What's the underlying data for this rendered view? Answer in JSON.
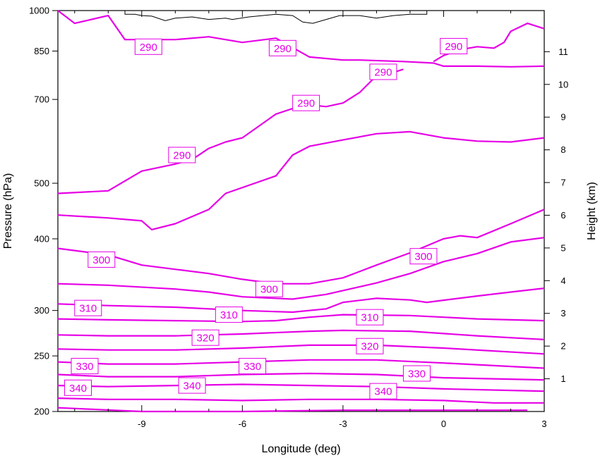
{
  "chart_data": {
    "type": "line",
    "subtype": "contour-cross-section",
    "title": "",
    "xlabel": "Longitude (deg)",
    "ylabel": "Pressure (hPa)",
    "y2label": "Height (km)",
    "xlim": [
      -11.5,
      3
    ],
    "ylim": [
      1000,
      200
    ],
    "y_scale": "log",
    "y2lim": [
      0,
      12
    ],
    "x_ticks": [
      -9,
      -6,
      -3,
      0,
      3
    ],
    "x_tick_labels": [
      "-9",
      "-6",
      "-3",
      "0",
      "3"
    ],
    "y_ticks": [
      200,
      250,
      300,
      400,
      500,
      700,
      850,
      1000
    ],
    "y_tick_labels": [
      "200",
      "250",
      "300",
      "400",
      "500",
      "700",
      "850",
      "1000"
    ],
    "y2_ticks": [
      1,
      2,
      3,
      4,
      5,
      6,
      7,
      8,
      9,
      10,
      11
    ],
    "y2_tick_labels": [
      "1",
      "2",
      "3",
      "4",
      "5",
      "6",
      "7",
      "8",
      "9",
      "10",
      "11"
    ],
    "grid": false,
    "legend": "none",
    "colors": {
      "contour": "#e600e6",
      "terrain": "#000000",
      "axis": "#000000"
    },
    "contour_interval_K": 5,
    "series": [
      {
        "level": 345,
        "points": [
          [
            -11.5,
            203
          ],
          [
            -9,
            200
          ],
          [
            -6,
            200
          ],
          [
            -3,
            201
          ],
          [
            0,
            201
          ],
          [
            2.5,
            201
          ]
        ]
      },
      {
        "level": 340,
        "points": [
          [
            -11.5,
            211
          ],
          [
            -10,
            210
          ],
          [
            -8,
            210
          ],
          [
            -6,
            209
          ],
          [
            -4,
            210
          ],
          [
            -2,
            210
          ],
          [
            0,
            209
          ],
          [
            1.5,
            207
          ],
          [
            3,
            207
          ]
        ]
      },
      {
        "level": 335,
        "points": [
          [
            -11.5,
            222
          ],
          [
            -10,
            221
          ],
          [
            -8,
            222
          ],
          [
            -6,
            223
          ],
          [
            -4,
            222
          ],
          [
            -2,
            221
          ],
          [
            0,
            219
          ],
          [
            3,
            217
          ]
        ]
      },
      {
        "level": 330,
        "points": [
          [
            -11.5,
            232
          ],
          [
            -10,
            230
          ],
          [
            -8,
            230
          ],
          [
            -6,
            232
          ],
          [
            -4,
            233
          ],
          [
            -2,
            232
          ],
          [
            0,
            229
          ],
          [
            3,
            227
          ]
        ]
      },
      {
        "level": 325,
        "points": [
          [
            -11.5,
            244
          ],
          [
            -10,
            242
          ],
          [
            -8,
            242
          ],
          [
            -6,
            244
          ],
          [
            -4,
            246
          ],
          [
            -2,
            246
          ],
          [
            0,
            243
          ],
          [
            3,
            238
          ]
        ]
      },
      {
        "level": 320,
        "points": [
          [
            -11.5,
            257
          ],
          [
            -10,
            256
          ],
          [
            -8,
            256
          ],
          [
            -6,
            258
          ],
          [
            -4,
            261
          ],
          [
            -2,
            261
          ],
          [
            0,
            258
          ],
          [
            3,
            252
          ]
        ]
      },
      {
        "level": 315,
        "points": [
          [
            -11.5,
            272
          ],
          [
            -10,
            271
          ],
          [
            -8,
            271
          ],
          [
            -6,
            273
          ],
          [
            -4,
            276
          ],
          [
            -3,
            277
          ],
          [
            -1,
            276
          ],
          [
            1,
            271
          ],
          [
            3,
            267
          ]
        ]
      },
      {
        "level": 310,
        "points": [
          [
            -11.5,
            290
          ],
          [
            -10,
            289
          ],
          [
            -8,
            288
          ],
          [
            -6,
            287
          ],
          [
            -5,
            288
          ],
          [
            -4,
            292
          ],
          [
            -3,
            295
          ],
          [
            -1,
            294
          ],
          [
            1,
            290
          ],
          [
            3,
            288
          ]
        ]
      },
      {
        "level": 305,
        "points": [
          [
            -11.5,
            308
          ],
          [
            -10,
            306
          ],
          [
            -8,
            304
          ],
          [
            -6,
            300
          ],
          [
            -4.5,
            298
          ],
          [
            -3.5,
            302
          ],
          [
            -3,
            310
          ],
          [
            -2,
            315
          ],
          [
            -1,
            313
          ],
          [
            -0.5,
            310
          ],
          [
            1,
            318
          ],
          [
            2,
            323
          ],
          [
            3,
            328
          ]
        ]
      },
      {
        "level": 300,
        "points": [
          [
            -11.5,
            334
          ],
          [
            -10,
            332
          ],
          [
            -8,
            327
          ],
          [
            -7,
            323
          ],
          [
            -6,
            317
          ],
          [
            -4.5,
            314
          ],
          [
            -3.5,
            320
          ],
          [
            -2,
            335
          ],
          [
            -1,
            348
          ],
          [
            0,
            365
          ],
          [
            1,
            377
          ],
          [
            2,
            395
          ],
          [
            3,
            402
          ]
        ]
      },
      {
        "level": 295,
        "points": [
          [
            -11.5,
            385
          ],
          [
            -10,
            375
          ],
          [
            -9,
            360
          ],
          [
            -7,
            348
          ],
          [
            -6,
            340
          ],
          [
            -5,
            334
          ],
          [
            -4,
            334
          ],
          [
            -3,
            342
          ],
          [
            -2,
            360
          ],
          [
            -1,
            378
          ],
          [
            0,
            400
          ],
          [
            0.5,
            405
          ],
          [
            1,
            402
          ],
          [
            2,
            425
          ],
          [
            3,
            450
          ]
        ]
      },
      {
        "level": 290,
        "points": [
          [
            -11.5,
            440
          ],
          [
            -10,
            435
          ],
          [
            -9,
            430
          ],
          [
            -8.7,
            415
          ],
          [
            -8,
            425
          ],
          [
            -7,
            450
          ],
          [
            -6.5,
            480
          ],
          [
            -5,
            515
          ],
          [
            -4.5,
            560
          ],
          [
            -4,
            580
          ],
          [
            -3,
            595
          ],
          [
            -2,
            610
          ],
          [
            -1,
            615
          ],
          [
            0,
            600
          ],
          [
            1,
            592
          ],
          [
            2,
            590
          ],
          [
            3,
            600
          ]
        ]
      },
      {
        "level": 290,
        "points": [
          [
            -11.5,
            480
          ],
          [
            -10,
            485
          ],
          [
            -9,
            525
          ],
          [
            -8,
            540
          ],
          [
            -7.5,
            550
          ],
          [
            -7,
            575
          ],
          [
            -6.5,
            590
          ],
          [
            -6,
            600
          ],
          [
            -5,
            660
          ],
          [
            -4.5,
            675
          ],
          [
            -4,
            685
          ],
          [
            -3.5,
            680
          ],
          [
            -3,
            690
          ],
          [
            -2.5,
            720
          ],
          [
            -2,
            770
          ],
          [
            -1.5,
            780
          ],
          [
            -1.2,
            790
          ]
        ]
      },
      {
        "level": 290,
        "points": [
          [
            -11.5,
            1000
          ],
          [
            -11,
            950
          ],
          [
            -10,
            980
          ],
          [
            -9.5,
            890
          ],
          [
            -8,
            890
          ],
          [
            -7,
            900
          ],
          [
            -6,
            880
          ],
          [
            -5,
            895
          ],
          [
            -4,
            830
          ],
          [
            -3,
            820
          ],
          [
            -2.5,
            820
          ],
          [
            -1.2,
            815
          ],
          [
            -0.3,
            810
          ],
          [
            0,
            800
          ],
          [
            1,
            800
          ],
          [
            2,
            798
          ],
          [
            3,
            800
          ]
        ]
      },
      {
        "level": 290,
        "points": [
          [
            -0.3,
            815
          ],
          [
            0,
            835
          ],
          [
            0.5,
            855
          ],
          [
            1,
            865
          ],
          [
            1.5,
            860
          ],
          [
            1.8,
            880
          ],
          [
            2,
            920
          ],
          [
            2.5,
            950
          ],
          [
            3,
            930
          ]
        ]
      }
    ],
    "label_positions": [
      {
        "text": "340",
        "x": -10.9,
        "p": 220
      },
      {
        "text": "340",
        "x": -7.5,
        "p": 222
      },
      {
        "text": "340",
        "x": -1.8,
        "p": 217
      },
      {
        "text": "330",
        "x": -10.7,
        "p": 240
      },
      {
        "text": "330",
        "x": -5.7,
        "p": 240
      },
      {
        "text": "330",
        "x": -0.8,
        "p": 233
      },
      {
        "text": "320",
        "x": -7.1,
        "p": 269
      },
      {
        "text": "320",
        "x": -2.2,
        "p": 260
      },
      {
        "text": "310",
        "x": -10.6,
        "p": 303
      },
      {
        "text": "310",
        "x": -6.4,
        "p": 295
      },
      {
        "text": "310",
        "x": -2.2,
        "p": 292
      },
      {
        "text": "300",
        "x": -10.2,
        "p": 368
      },
      {
        "text": "300",
        "x": -5.2,
        "p": 327
      },
      {
        "text": "300",
        "x": -0.6,
        "p": 373
      },
      {
        "text": "290",
        "x": -7.8,
        "p": 560
      },
      {
        "text": "290",
        "x": -4.1,
        "p": 690
      },
      {
        "text": "290",
        "x": -1.8,
        "p": 782
      },
      {
        "text": "290",
        "x": -8.8,
        "p": 865
      },
      {
        "text": "290",
        "x": -4.8,
        "p": 860
      },
      {
        "text": "290",
        "x": 0.3,
        "p": 867
      }
    ],
    "terrain": [
      [
        -9.5,
        1000
      ],
      [
        -9.5,
        985
      ],
      [
        -9.2,
        985
      ],
      [
        -9,
        980
      ],
      [
        -8.7,
        978
      ],
      [
        -8.3,
        960
      ],
      [
        -8,
        970
      ],
      [
        -7.5,
        975
      ],
      [
        -7,
        965
      ],
      [
        -6.5,
        970
      ],
      [
        -6.3,
        965
      ],
      [
        -5.8,
        975
      ],
      [
        -5,
        985
      ],
      [
        -4.5,
        980
      ],
      [
        -4.2,
        955
      ],
      [
        -3.9,
        950
      ],
      [
        -3.5,
        965
      ],
      [
        -3.1,
        980
      ],
      [
        -2.5,
        980
      ],
      [
        -2,
        970
      ],
      [
        -1.5,
        980
      ],
      [
        -1,
        985
      ],
      [
        -0.5,
        985
      ],
      [
        -0.5,
        1000
      ]
    ],
    "unlabeled_axis_ticks": "top and bottom axes carry matching tick marks at -9,-6,-3,0,3 with minor ticks between"
  }
}
